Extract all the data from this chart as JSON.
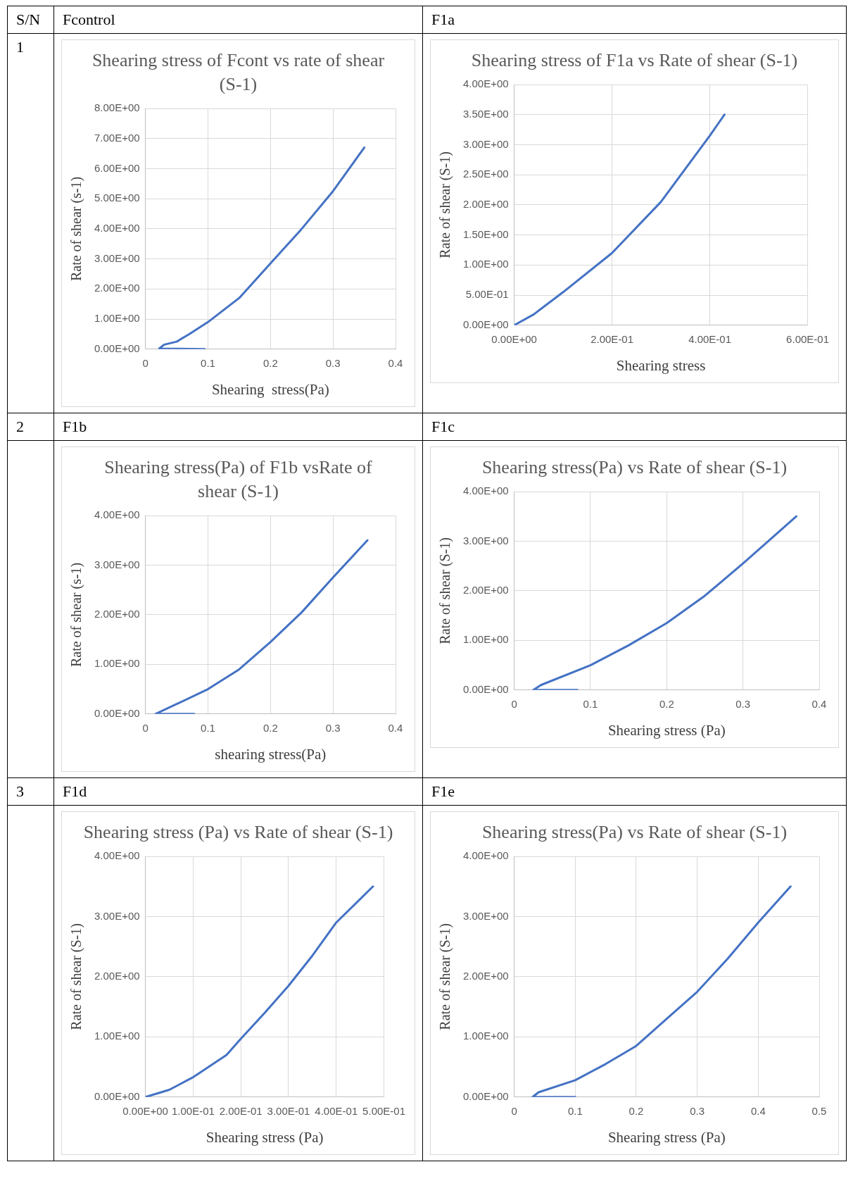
{
  "chart_data": [
    {
      "type": "line",
      "title": "Shearing  stress of Fcont vs rate of shear (S-1)",
      "xlabel": "Shearing  stress(Pa)",
      "ylabel": "Rate of shear (s-1)",
      "annotations": [
        "S/N",
        "Fcontrol",
        "1"
      ],
      "series": [
        {
          "color": "#4472c4",
          "x": [
            0.095,
            0.022,
            0.03,
            0.05,
            0.07,
            0.1,
            0.15,
            0.2,
            0.25,
            0.3,
            0.35
          ],
          "values": [
            0,
            0.02,
            0.15,
            0.25,
            0.5,
            0.9,
            1.7,
            2.85,
            4.0,
            5.25,
            6.7
          ]
        }
      ],
      "xlim": [
        0,
        0.4
      ],
      "xticks": [
        0,
        0.1,
        0.2,
        0.3,
        0.4
      ],
      "ylim": [
        0,
        8
      ],
      "yticks": [
        {
          "value": 0,
          "label": "0.00E+00"
        },
        {
          "value": 1,
          "label": "1.00E+00"
        },
        {
          "value": 2,
          "label": "2.00E+00"
        },
        {
          "value": 3,
          "label": "3.00E+00"
        },
        {
          "value": 4,
          "label": "4.00E+00"
        },
        {
          "value": 5,
          "label": "5.00E+00"
        },
        {
          "value": 6,
          "label": "6.00E+00"
        },
        {
          "value": 7,
          "label": "7.00E+00"
        },
        {
          "value": 8,
          "label": "8.00E+00"
        }
      ],
      "grid": true,
      "legend": false,
      "marker": "none"
    },
    {
      "type": "line",
      "title": "Shearing stress of F1a vs Rate of shear (S-1)",
      "xlabel": "Shearing stress",
      "ylabel": "Rate of shear (S-1)",
      "annotations": [
        "F1a"
      ],
      "series": [
        {
          "color": "#4472c4",
          "x": [
            0,
            0.04,
            0.1,
            0.2,
            0.3,
            0.4,
            0.43
          ],
          "values": [
            0,
            0.18,
            0.55,
            1.2,
            2.05,
            3.15,
            3.5
          ]
        }
      ],
      "xlim": [
        0,
        0.6
      ],
      "xticks": [
        {
          "value": 0,
          "label": "0.00E+00"
        },
        {
          "value": 0.2,
          "label": "2.00E-01"
        },
        {
          "value": 0.4,
          "label": "4.00E-01"
        },
        {
          "value": 0.6,
          "label": "6.00E-01"
        }
      ],
      "ylim": [
        0,
        4
      ],
      "yticks": [
        {
          "value": 0,
          "label": "0.00E+00"
        },
        {
          "value": 0.5,
          "label": "5.00E-01"
        },
        {
          "value": 1,
          "label": "1.00E+00"
        },
        {
          "value": 1.5,
          "label": "1.50E+00"
        },
        {
          "value": 2,
          "label": "2.00E+00"
        },
        {
          "value": 2.5,
          "label": "2.50E+00"
        },
        {
          "value": 3,
          "label": "3.00E+00"
        },
        {
          "value": 3.5,
          "label": "3.50E+00"
        },
        {
          "value": 4,
          "label": "4.00E+00"
        }
      ],
      "grid": true,
      "legend": false,
      "marker": "none"
    },
    {
      "type": "line",
      "title": "Shearing stress(Pa) of F1b vsRate of shear (S-1)",
      "xlabel": "shearing stress(Pa)",
      "ylabel": "Rate of shear (s-1)",
      "annotations": [
        "2",
        "F1b"
      ],
      "series": [
        {
          "color": "#4472c4",
          "x": [
            0.078,
            0.016,
            0.05,
            0.1,
            0.15,
            0.2,
            0.25,
            0.3,
            0.355
          ],
          "values": [
            0,
            0,
            0.2,
            0.5,
            0.9,
            1.45,
            2.05,
            2.75,
            3.5
          ]
        }
      ],
      "xlim": [
        0,
        0.4
      ],
      "xticks": [
        0,
        0.1,
        0.2,
        0.3,
        0.4
      ],
      "ylim": [
        0,
        4
      ],
      "yticks": [
        {
          "value": 0,
          "label": "0.00E+00"
        },
        {
          "value": 1,
          "label": "1.00E+00"
        },
        {
          "value": 2,
          "label": "2.00E+00"
        },
        {
          "value": 3,
          "label": "3.00E+00"
        },
        {
          "value": 4,
          "label": "4.00E+00"
        }
      ],
      "grid": true,
      "legend": false,
      "marker": "none"
    },
    {
      "type": "line",
      "title": "Shearing stress(Pa) vs Rate of shear (S-1)",
      "xlabel": "Shearing stress (Pa)",
      "ylabel": "Rate of shear (S-1)",
      "annotations": [
        "F1c"
      ],
      "series": [
        {
          "color": "#4472c4",
          "x": [
            0.083,
            0.025,
            0.035,
            0.1,
            0.15,
            0.2,
            0.25,
            0.3,
            0.37
          ],
          "values": [
            0,
            0,
            0.1,
            0.5,
            0.9,
            1.35,
            1.9,
            2.55,
            3.5
          ]
        }
      ],
      "xlim": [
        0,
        0.4
      ],
      "xticks": [
        0,
        0.1,
        0.2,
        0.3,
        0.4
      ],
      "ylim": [
        0,
        4
      ],
      "yticks": [
        {
          "value": 0,
          "label": "0.00E+00"
        },
        {
          "value": 1,
          "label": "1.00E+00"
        },
        {
          "value": 2,
          "label": "2.00E+00"
        },
        {
          "value": 3,
          "label": "3.00E+00"
        },
        {
          "value": 4,
          "label": "4.00E+00"
        }
      ],
      "grid": true,
      "legend": false,
      "marker": "none"
    },
    {
      "type": "line",
      "title": "Shearing stress (Pa) vs Rate of shear (S-1)",
      "xlabel": "Shearing stress (Pa)",
      "ylabel": "Rate of shear (S-1)",
      "annotations": [
        "3",
        "F1d"
      ],
      "series": [
        {
          "color": "#4472c4",
          "x": [
            0,
            0.05,
            0.1,
            0.17,
            0.2,
            0.25,
            0.3,
            0.35,
            0.4,
            0.477
          ],
          "values": [
            0,
            0.12,
            0.33,
            0.7,
            0.97,
            1.4,
            1.85,
            2.35,
            2.9,
            3.5
          ]
        }
      ],
      "xlim": [
        0,
        0.5
      ],
      "xticks": [
        {
          "value": 0,
          "label": "0.00E+00"
        },
        {
          "value": 0.1,
          "label": "1.00E-01"
        },
        {
          "value": 0.2,
          "label": "2.00E-01"
        },
        {
          "value": 0.3,
          "label": "3.00E-01"
        },
        {
          "value": 0.4,
          "label": "4.00E-01"
        },
        {
          "value": 0.5,
          "label": "5.00E-01"
        }
      ],
      "ylim": [
        0,
        4
      ],
      "yticks": [
        {
          "value": 0,
          "label": "0.00E+00"
        },
        {
          "value": 1,
          "label": "1.00E+00"
        },
        {
          "value": 2,
          "label": "2.00E+00"
        },
        {
          "value": 3,
          "label": "3.00E+00"
        },
        {
          "value": 4,
          "label": "4.00E+00"
        }
      ],
      "grid": true,
      "legend": false,
      "marker": "none"
    },
    {
      "type": "line",
      "title": "Shearing stress(Pa) vs Rate of shear (S-1)",
      "xlabel": "Shearing stress (Pa)",
      "ylabel": "Rate of shear (S-1)",
      "annotations": [
        "F1e"
      ],
      "series": [
        {
          "color": "#4472c4",
          "x": [
            0.1,
            0.03,
            0.04,
            0.1,
            0.15,
            0.2,
            0.25,
            0.3,
            0.35,
            0.4,
            0.453
          ],
          "values": [
            0,
            0,
            0.08,
            0.28,
            0.55,
            0.85,
            1.3,
            1.75,
            2.3,
            2.9,
            3.5
          ]
        }
      ],
      "xlim": [
        0,
        0.5
      ],
      "xticks": [
        0,
        0.1,
        0.2,
        0.3,
        0.4,
        0.5
      ],
      "ylim": [
        0,
        4
      ],
      "yticks": [
        {
          "value": 0,
          "label": "0.00E+00"
        },
        {
          "value": 1,
          "label": "1.00E+00"
        },
        {
          "value": 2,
          "label": "2.00E+00"
        },
        {
          "value": 3,
          "label": "3.00E+00"
        },
        {
          "value": 4,
          "label": "4.00E+00"
        }
      ],
      "grid": true,
      "legend": false,
      "marker": "none"
    }
  ]
}
